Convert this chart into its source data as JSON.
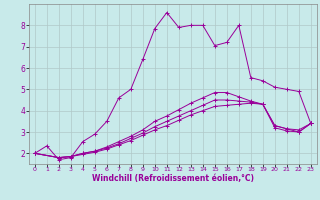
{
  "title": "",
  "xlabel": "Windchill (Refroidissement éolien,°C)",
  "ylabel": "",
  "background_color": "#c8eaea",
  "grid_color": "#b0c8c8",
  "line_color": "#990099",
  "xlim": [
    -0.5,
    23.5
  ],
  "ylim": [
    1.5,
    9.0
  ],
  "xticks": [
    0,
    1,
    2,
    3,
    4,
    5,
    6,
    7,
    8,
    9,
    10,
    11,
    12,
    13,
    14,
    15,
    16,
    17,
    18,
    19,
    20,
    21,
    22,
    23
  ],
  "yticks": [
    2,
    3,
    4,
    5,
    6,
    7,
    8
  ],
  "curves": [
    {
      "x": [
        0,
        1,
        2,
        3,
        4,
        5,
        6,
        7,
        8,
        9,
        10,
        11,
        12,
        13,
        14,
        15,
        16,
        17,
        18,
        19,
        20,
        21,
        22,
        23
      ],
      "y": [
        2.0,
        2.35,
        1.7,
        1.8,
        2.55,
        2.9,
        3.5,
        4.6,
        5.0,
        6.4,
        7.85,
        8.6,
        7.9,
        8.0,
        8.0,
        7.05,
        7.2,
        8.0,
        5.55,
        5.4,
        5.1,
        5.0,
        4.9,
        3.4
      ]
    },
    {
      "x": [
        0,
        2,
        3,
        4,
        5,
        6,
        7,
        8,
        9,
        10,
        11,
        12,
        13,
        14,
        15,
        16,
        17,
        18,
        19,
        20,
        21,
        22,
        23
      ],
      "y": [
        2.0,
        1.8,
        1.85,
        2.0,
        2.1,
        2.3,
        2.55,
        2.8,
        3.1,
        3.5,
        3.75,
        4.05,
        4.35,
        4.6,
        4.85,
        4.85,
        4.65,
        4.45,
        4.3,
        3.3,
        3.15,
        3.1,
        3.4
      ]
    },
    {
      "x": [
        0,
        2,
        3,
        4,
        5,
        6,
        7,
        8,
        9,
        10,
        11,
        12,
        13,
        14,
        15,
        16,
        17,
        18,
        19,
        20,
        21,
        22,
        23
      ],
      "y": [
        2.0,
        1.8,
        1.85,
        2.0,
        2.1,
        2.25,
        2.45,
        2.7,
        2.95,
        3.25,
        3.5,
        3.75,
        4.0,
        4.25,
        4.5,
        4.5,
        4.45,
        4.4,
        4.3,
        3.3,
        3.15,
        3.0,
        3.4
      ]
    },
    {
      "x": [
        0,
        2,
        3,
        4,
        5,
        6,
        7,
        8,
        9,
        10,
        11,
        12,
        13,
        14,
        15,
        16,
        17,
        18,
        19,
        20,
        21,
        22,
        23
      ],
      "y": [
        2.0,
        1.8,
        1.85,
        1.95,
        2.05,
        2.2,
        2.4,
        2.6,
        2.85,
        3.1,
        3.3,
        3.55,
        3.8,
        4.0,
        4.2,
        4.25,
        4.3,
        4.35,
        4.3,
        3.2,
        3.05,
        3.0,
        3.4
      ]
    }
  ]
}
